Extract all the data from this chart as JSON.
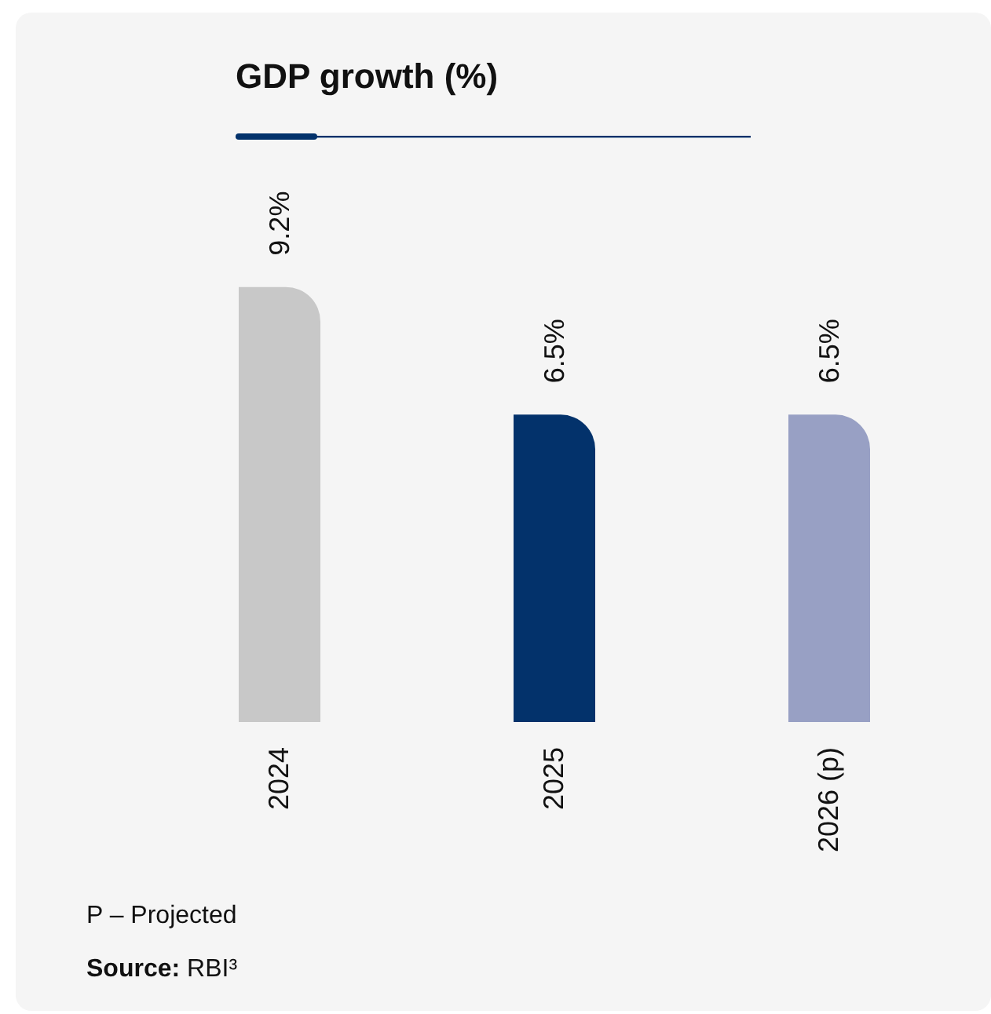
{
  "chart_data": {
    "type": "bar",
    "title": "GDP growth (%)",
    "categories": [
      "2024",
      "2025",
      "2026 (p)"
    ],
    "values": [
      9.2,
      6.5,
      6.5
    ],
    "colors": [
      "#c8c8c8",
      "#03326b",
      "#98a0c4"
    ],
    "value_labels": [
      "9.2%",
      "6.5%",
      "6.5%"
    ],
    "annotations": [
      "P – Projected",
      "Source: RBI³"
    ]
  }
}
